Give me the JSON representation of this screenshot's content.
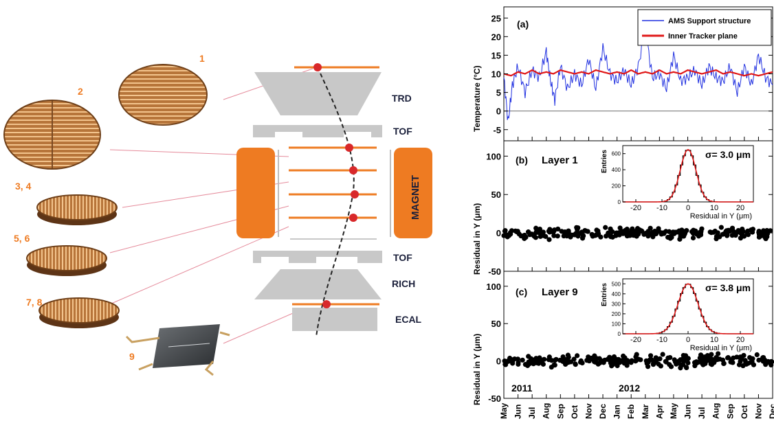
{
  "diagram": {
    "detectors": [
      "TRD",
      "TOF",
      "MAGNET",
      "TOF",
      "RICH",
      "ECAL"
    ],
    "plane_labels": [
      "1",
      "2",
      "3, 4",
      "5, 6",
      "7, 8",
      "9"
    ],
    "colors": {
      "orange": "#ee7b22",
      "grey": "#c8c8c8",
      "hit": "#d8282a"
    }
  },
  "chart_data": [
    {
      "panel": "(a)",
      "type": "line",
      "ylabel": "Temperature (°C)",
      "ylim": [
        -8,
        28
      ],
      "yticks": [
        -5,
        0,
        5,
        10,
        15,
        20,
        25
      ],
      "x_range_months": [
        "May 2011",
        "Dec 2012"
      ],
      "legend_position": "top-right",
      "series": [
        {
          "name": "AMS Support structure",
          "color": "#1f2fe0",
          "x": [
            0,
            0.3,
            0.6,
            1,
            1.5,
            2,
            2.5,
            3,
            3.3,
            3.6,
            4,
            4.5,
            5,
            5.5,
            6,
            6.5,
            7,
            7.5,
            8,
            8.5,
            9,
            9.5,
            10,
            10.5,
            11,
            11.5,
            12,
            12.5,
            13,
            13.5,
            14,
            14.5,
            15,
            15.5,
            16,
            16.5,
            17,
            17.5,
            18,
            18.5,
            19
          ],
          "values": [
            9,
            -3,
            7,
            12,
            5,
            11,
            9,
            16,
            8,
            3,
            12,
            6,
            10,
            7,
            14,
            6,
            17,
            10,
            8,
            11,
            7,
            12,
            22,
            9,
            10,
            6,
            15,
            8,
            9,
            11,
            7,
            12,
            9,
            8,
            12,
            5,
            12,
            7,
            15,
            9,
            7
          ]
        },
        {
          "name": "Inner Tracker plane",
          "color": "#e01818",
          "x": [
            0,
            0.5,
            1,
            1.5,
            2,
            2.5,
            3,
            3.5,
            4,
            4.5,
            5,
            5.5,
            6,
            6.5,
            7,
            7.5,
            8,
            8.5,
            9,
            9.5,
            10,
            10.5,
            11,
            11.5,
            12,
            12.5,
            13,
            13.5,
            14,
            14.5,
            15,
            15.5,
            16,
            16.5,
            17,
            17.5,
            18,
            18.5,
            19
          ],
          "values": [
            10,
            9.5,
            10.5,
            10,
            11,
            10,
            10.5,
            10,
            11,
            10.5,
            10,
            10.5,
            10,
            11,
            10.5,
            10,
            10.5,
            10,
            11,
            10,
            10.5,
            10,
            11,
            10,
            10.5,
            10,
            11,
            10.5,
            10,
            10.5,
            11,
            10,
            10.5,
            10,
            9.5,
            10,
            9.5,
            10,
            10.5
          ]
        }
      ]
    },
    {
      "panel": "(b)",
      "title": "Layer 1",
      "type": "scatter",
      "ylabel": "Residual in Y (μm)",
      "ylim": [
        -50,
        120
      ],
      "yticks": [
        -50,
        0,
        50,
        100
      ],
      "series": [
        {
          "name": "",
          "mean": 0,
          "spread": 4
        }
      ],
      "inset": {
        "type": "histogram",
        "sigma_label": "σ= 3.0 μm",
        "ylabel": "Entries",
        "xlabel": "Residual in Y (μm)",
        "xlim": [
          -25,
          25
        ],
        "ylim": [
          0,
          700
        ],
        "xticks": [
          -20,
          -10,
          0,
          10,
          20
        ],
        "yticks": [
          0,
          200,
          400,
          600
        ],
        "mean": 0,
        "sigma": 3.0,
        "peak": 650
      }
    },
    {
      "panel": "(c)",
      "title": "Layer 9",
      "type": "scatter",
      "ylabel": "Residual in Y (μm)",
      "ylim": [
        -50,
        120
      ],
      "yticks": [
        -50,
        0,
        50,
        100
      ],
      "series": [
        {
          "name": "",
          "mean": 0,
          "spread": 5
        }
      ],
      "inset": {
        "type": "histogram",
        "sigma_label": "σ= 3.8 μm",
        "ylabel": "Entries",
        "xlabel": "Residual in Y (μm)",
        "xlim": [
          -25,
          25
        ],
        "ylim": [
          0,
          550
        ],
        "xticks": [
          -20,
          -10,
          0,
          10,
          20
        ],
        "yticks": [
          0,
          100,
          200,
          300,
          400,
          500
        ],
        "mean": 0,
        "sigma": 3.8,
        "peak": 500
      }
    }
  ],
  "x_axis": {
    "months": [
      "May",
      "Jun",
      "Jul",
      "Aug",
      "Sep",
      "Oct",
      "Nov",
      "Dec",
      "Jan",
      "Feb",
      "Mar",
      "Apr",
      "May",
      "Jun",
      "Jul",
      "Aug",
      "Sep",
      "Oct",
      "Nov",
      "Dec"
    ],
    "years": [
      "2011",
      "2012"
    ]
  }
}
